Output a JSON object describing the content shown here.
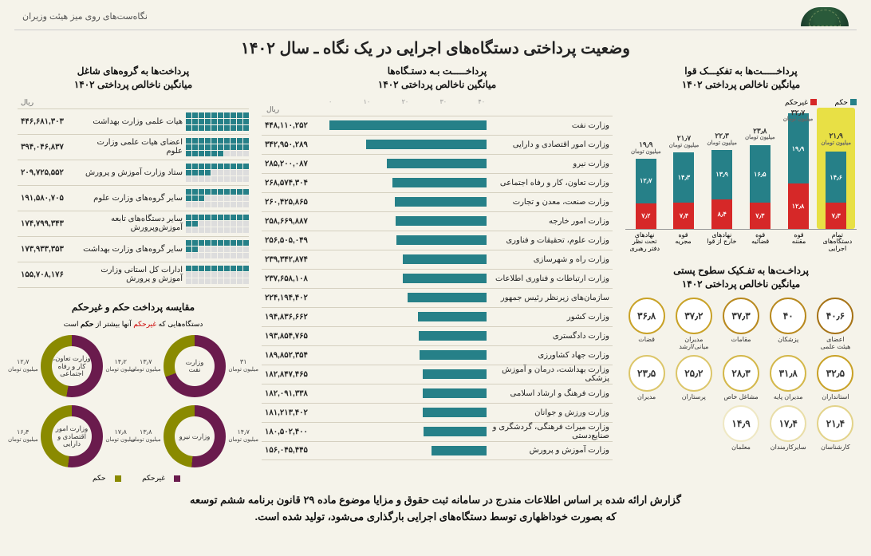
{
  "colors": {
    "bg": "#f5f3ea",
    "teal": "#268088",
    "red": "#d62828",
    "yellow": "#e8e045",
    "gold1": "#c9a227",
    "gold2": "#b8891e",
    "gold3": "#a67316",
    "maroon": "#6a1b4d",
    "olive": "#8a8a00",
    "grid": "#d5d0c0"
  },
  "header": {
    "topRight": "نگاه‌ست‌های روی میز هیئت وزیران",
    "mainTitle": "وضعیت پرداختی دستگاه‌های اجرایی در یک نگاه ـ سال ۱۴۰۲"
  },
  "powers": {
    "title1": "پرداخـــــت‌ها به تفکیـــک قوا",
    "title2": "میانگین ناخالص پرداختی ۱۴۰۲",
    "legend": {
      "hokm": "حکم",
      "gheyr": "غیرحکم"
    },
    "unit": "میلیون تومان",
    "yMax": 34,
    "items": [
      {
        "label": "تمام\nدستگاه‌های\nاجرایی",
        "total": "۲۱٫۹",
        "hokm": 14.6,
        "gheyr": 7.3,
        "hokmTxt": "۱۴٫۶",
        "gheyrTxt": "۷٫۳",
        "highlight": true
      },
      {
        "label": "قوه\nمقننه",
        "total": "۳۲٫۷",
        "hokm": 19.9,
        "gheyr": 12.8,
        "hokmTxt": "۱۹٫۹",
        "gheyrTxt": "۱۲٫۸",
        "highlight": false
      },
      {
        "label": "قوه\nقضائیه",
        "total": "۲۳٫۸",
        "hokm": 16.5,
        "gheyr": 7.3,
        "hokmTxt": "۱۶٫۵",
        "gheyrTxt": "۷٫۳",
        "highlight": false
      },
      {
        "label": "نهادهای\nخارج از قوا",
        "total": "۲۲٫۳",
        "hokm": 13.9,
        "gheyr": 8.4,
        "hokmTxt": "۱۳٫۹",
        "gheyrTxt": "۸٫۴",
        "highlight": false
      },
      {
        "label": "قوه\nمجریه",
        "total": "۲۱٫۷",
        "hokm": 14.3,
        "gheyr": 7.4,
        "hokmTxt": "۱۴٫۳",
        "gheyrTxt": "۷٫۴",
        "highlight": false
      },
      {
        "label": "نهادهای\nتحت نظر\nدفتر رهبری",
        "total": "۱۹٫۹",
        "hokm": 12.7,
        "gheyr": 7.2,
        "hokmTxt": "۱۲٫۷",
        "gheyrTxt": "۷٫۲",
        "highlight": false
      }
    ]
  },
  "levels": {
    "title1": "پرداخـت‌ها به تفـکیک سطوح پستی",
    "title2": "میانگین ناخالص پرداختی ۱۴۰۲",
    "rows": [
      [
        {
          "val": "۴۰٫۶",
          "label": "اعضای\nهیئت علمی",
          "color": "#a67316"
        },
        {
          "val": "۴۰",
          "label": "پزشکان",
          "color": "#b8891e"
        },
        {
          "val": "۳۷٫۳",
          "label": "مقامات",
          "color": "#b8891e"
        },
        {
          "val": "۳۷٫۲",
          "label": "مدیران\nمیانی/ارشد",
          "color": "#c9a227"
        },
        {
          "val": "۳۶٫۸",
          "label": "قضات",
          "color": "#c9a227"
        }
      ],
      [
        {
          "val": "۳۲٫۵",
          "label": "استانداران",
          "color": "#c9a227"
        },
        {
          "val": "۳۱٫۸",
          "label": "مدیران پایه",
          "color": "#d4b84a"
        },
        {
          "val": "۲۸٫۳",
          "label": "مشاغل خاص",
          "color": "#d4b84a"
        },
        {
          "val": "۲۵٫۲",
          "label": "پرستاران",
          "color": "#dcc66a"
        },
        {
          "val": "۲۳٫۵",
          "label": "مدیران",
          "color": "#dcc66a"
        }
      ],
      [
        {
          "val": "۲۱٫۴",
          "label": "کارشناسان",
          "color": "#e3d38a"
        },
        {
          "val": "۱۷٫۴",
          "label": "سایرکارمندان",
          "color": "#e9dea8"
        },
        {
          "val": "۱۴٫۹",
          "label": "معلمان",
          "color": "#efe8c4"
        }
      ]
    ]
  },
  "agencies": {
    "title1": "پرداخـــــت بـه دستـگاه‌ها",
    "title2": "میانگین ناخالص پرداختی ۱۴۰۲",
    "unit": "ریال",
    "max": 450000000,
    "scale": [
      "۴۰",
      "۳۰",
      "۲۰",
      "۱۰",
      "۰"
    ],
    "items": [
      {
        "label": "وزارت نفت",
        "val": "۴۴۸,۱۱۰,۲۵۲",
        "num": 448110252
      },
      {
        "label": "وزارت امور اقتصادی و دارایی",
        "val": "۳۴۲,۹۵۰,۲۸۹",
        "num": 342950289
      },
      {
        "label": "وزارت نیرو",
        "val": "۲۸۵,۲۰۰,۰۸۷",
        "num": 285200087
      },
      {
        "label": "وزارت تعاون، کار و رفاه اجتماعی",
        "val": "۲۶۸,۵۷۴,۳۰۴",
        "num": 268574304
      },
      {
        "label": "وزارت صنعت، معدن و تجارت",
        "val": "۲۶۰,۴۲۵,۸۶۵",
        "num": 260425865
      },
      {
        "label": "وزارت امور خارجه",
        "val": "۲۵۸,۶۶۹,۸۸۷",
        "num": 258669887
      },
      {
        "label": "وزارت علوم، تحقیقات و فناوری",
        "val": "۲۵۶,۵۰۵,۰۴۹",
        "num": 256505049
      },
      {
        "label": "وزارت راه و شهرسازی",
        "val": "۲۳۹,۳۴۲,۸۷۴",
        "num": 239342874
      },
      {
        "label": "وزارت ارتباطات و فناوری اطلاعات",
        "val": "۲۳۷,۶۵۸,۱۰۸",
        "num": 237658108
      },
      {
        "label": "سازمان‌های زیرنظر رئیس جمهور",
        "val": "۲۲۴,۱۹۴,۴۰۲",
        "num": 224194402
      },
      {
        "label": "وزارت کشور",
        "val": "۱۹۴,۸۳۶,۶۶۲",
        "num": 194836662
      },
      {
        "label": "وزارت دادگستری",
        "val": "۱۹۳,۸۵۴,۷۶۵",
        "num": 193854765
      },
      {
        "label": "وزارت جهاد کشاورزی",
        "val": "۱۸۹,۸۵۲,۳۵۴",
        "num": 189852354
      },
      {
        "label": "وزارت بهداشت، درمان و آموزش پزشکی",
        "val": "۱۸۲,۸۴۷,۴۶۵",
        "num": 182847465
      },
      {
        "label": "وزارت فرهنگ و ارشاد اسلامی",
        "val": "۱۸۲,۰۹۱,۳۳۸",
        "num": 182091338
      },
      {
        "label": "وزارت ورزش و جوانان",
        "val": "۱۸۱,۲۱۳,۴۰۲",
        "num": 181213402
      },
      {
        "label": "وزارت میراث فرهنگی، گردشگری و صنایع‌دستی",
        "val": "۱۸۰,۵۰۲,۴۰۰",
        "num": 180502400
      },
      {
        "label": "وزارت آموزش و پرورش",
        "val": "۱۵۶,۰۴۵,۴۴۵",
        "num": 156045445
      }
    ]
  },
  "groups": {
    "title1": "پرداخت‌ها به گروه‌های شاغل",
    "title2": "میانگین ناخالص پرداختی ۱۴۰۲",
    "unit": "ریال",
    "maxCubes": 30,
    "items": [
      {
        "label": "هیات علمی وزارت بهداشت",
        "val": "۴۴۶,۶۸۱,۳۰۳",
        "cubes": 30
      },
      {
        "label": "اعضای هیات علمی وزارت علوم",
        "val": "۳۹۴,۰۴۶,۸۳۷",
        "cubes": 26
      },
      {
        "label": "ستاد وزارت آموزش و پرورش",
        "val": "۲۰۹,۷۲۵,۵۵۲",
        "cubes": 14
      },
      {
        "label": "سایر گروه‌های وزارت علوم",
        "val": "۱۹۱,۵۸۰,۷۰۵",
        "cubes": 13
      },
      {
        "label": "سایر دستگاه‌های تابعه آموزش‌وپرورش",
        "val": "۱۷۴,۷۹۹,۳۴۳",
        "cubes": 12
      },
      {
        "label": "سایر گروه‌های وزارت بهداشت",
        "val": "۱۷۳,۹۳۳,۳۵۳",
        "cubes": 12
      },
      {
        "label": "ادارات کل استانی وزارت آموزش و پرورش",
        "val": "۱۵۵,۷۰۸,۱۷۶",
        "cubes": 10
      }
    ]
  },
  "donuts": {
    "title": "مقایسه پرداخت حکم و غیرحکم",
    "subtitle_a": "دستگاه‌هایی که ",
    "subtitle_red": "غیرحکم",
    "subtitle_b": " آنها بیشتر از ",
    "subtitle_c": "حکم",
    "subtitle_d": " است",
    "unit": "میلیون تومان",
    "items": [
      {
        "name": "وزارت\nنفت",
        "hokm": 13.7,
        "gheyr": 31.0,
        "hokmTxt": "۱۳٫۷",
        "gheyrTxt": "۳۱"
      },
      {
        "name": "وزارت تعاون،\nکار و رفاه\nاجتماعی",
        "hokm": 12.7,
        "gheyr": 14.2,
        "hokmTxt": "۱۲٫۷",
        "gheyrTxt": "۱۴٫۲"
      },
      {
        "name": "وزارت نیرو",
        "hokm": 13.8,
        "gheyr": 14.7,
        "hokmTxt": "۱۳٫۸",
        "gheyrTxt": "۱۴٫۷"
      },
      {
        "name": "وزارت امور\nاقتصادی و\nدارایی",
        "hokm": 16.4,
        "gheyr": 17.8,
        "hokmTxt": "۱۶٫۴",
        "gheyrTxt": "۱۷٫۸"
      }
    ],
    "legend": {
      "hokm": "حکم",
      "gheyr": "غیرحکم"
    }
  },
  "footer": {
    "line1": "گزارش ارائه شده بر اساس اطلاعات مندرج در سامانه ثبت حقوق و مزایا موضوع ماده ۲۹ قانون برنامه ششم توسعه",
    "line2": "که بصورت خوداظهاری توسط دستگاه‌های اجرایی بارگذاری می‌شود، تولید شده است."
  }
}
